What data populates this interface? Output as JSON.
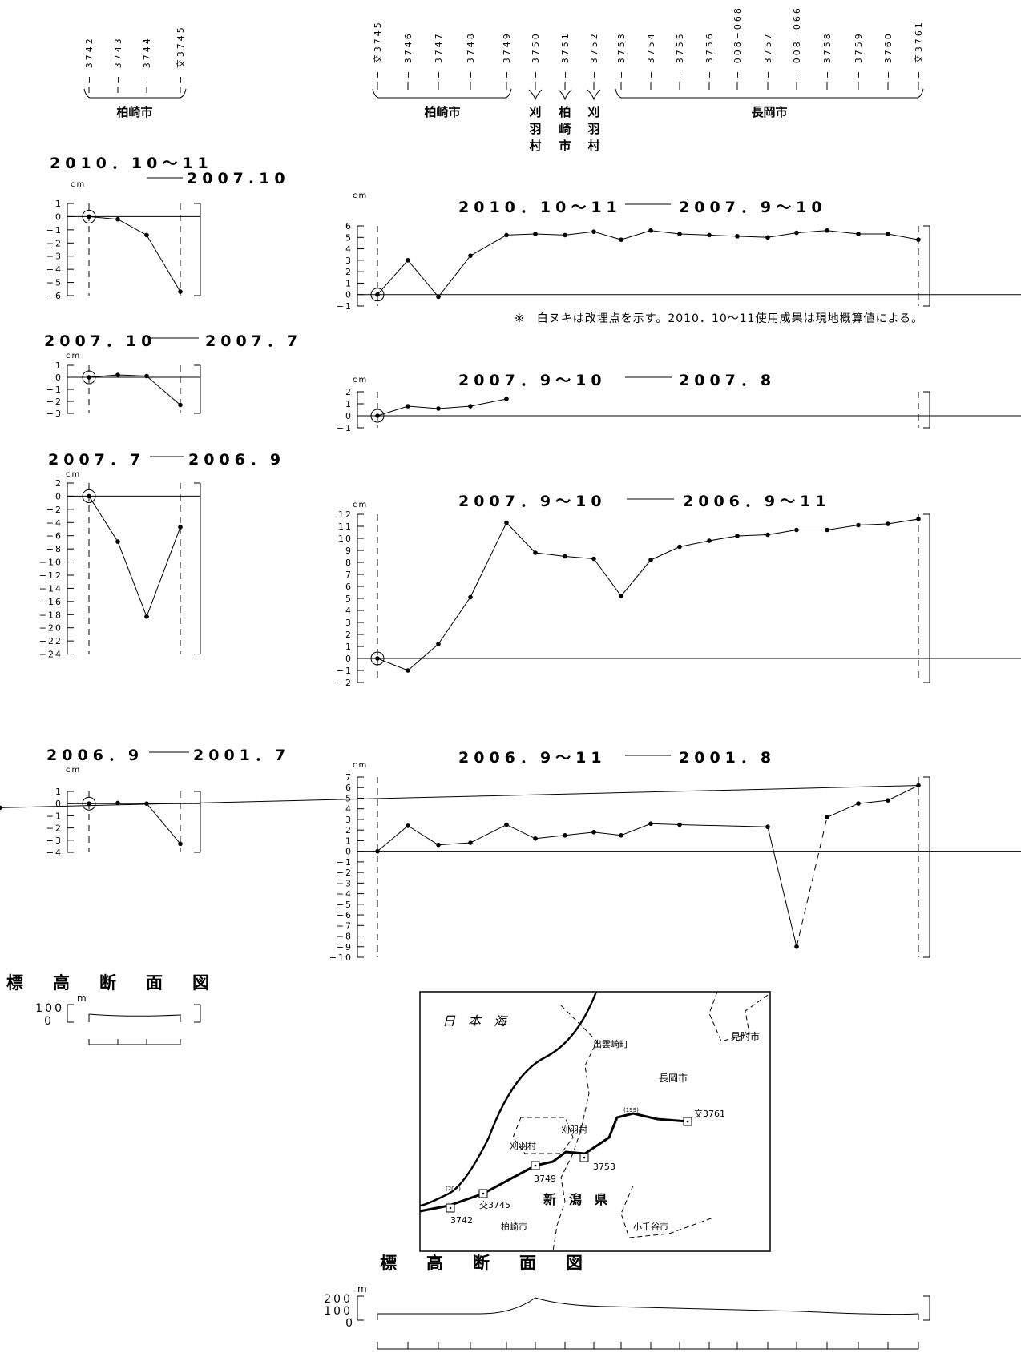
{
  "header": {
    "left": {
      "stations": [
        "3742",
        "3743",
        "3744",
        "交3745"
      ],
      "group": "柏崎市"
    },
    "right": {
      "stations": [
        "交3745",
        "3746",
        "3747",
        "3748",
        "3749",
        "3750",
        "3751",
        "3752",
        "3753",
        "3754",
        "3755",
        "3756",
        "008−068",
        "3757",
        "008−066",
        "3758",
        "3759",
        "3760",
        "交3761"
      ],
      "groups": [
        {
          "label": "柏崎市"
        },
        {
          "label": "刈羽村"
        },
        {
          "label": "柏崎市"
        },
        {
          "label": "刈羽村"
        },
        {
          "label": "長岡市"
        }
      ]
    }
  },
  "unit_cm": "cm",
  "note": "※　白ヌキは改埋点を示す。2010．10～11使用成果は現地概算値による。",
  "chart_data": [
    {
      "id": "L1",
      "type": "line",
      "title_a": "2010．10～11",
      "title_b": "2007.10",
      "ylabel": "cm",
      "ylim": [
        -6,
        1
      ],
      "ticks": [
        1,
        0,
        -1,
        -2,
        -3,
        -4,
        -5,
        -6
      ],
      "values": [
        0,
        -0.2,
        -1.4,
        -5.7
      ],
      "reference_index": 0
    },
    {
      "id": "L2",
      "type": "line",
      "title_a": "2007．10",
      "title_b": "2007．7",
      "ylabel": "cm",
      "ylim": [
        -3,
        1
      ],
      "ticks": [
        1,
        0,
        -1,
        -2,
        -3
      ],
      "values": [
        0,
        0.2,
        0.1,
        -2.3
      ],
      "reference_index": 0
    },
    {
      "id": "L3",
      "type": "line",
      "title_a": "2007．7",
      "title_b": "2006．9",
      "ylabel": "cm",
      "ylim": [
        -26,
        2
      ],
      "ticks": [
        2,
        0,
        -2,
        -4,
        -6,
        -8,
        -10,
        -12,
        -14,
        -16,
        -18,
        -20,
        -22,
        -24
      ],
      "values": [
        0,
        -6.9,
        -18.3,
        -4.7
      ],
      "reference_index": 0
    },
    {
      "id": "L4",
      "type": "line",
      "title_a": "2006．9",
      "title_b": "2001．7",
      "ylabel": "cm",
      "ylim": [
        -4,
        1
      ],
      "ticks": [
        1,
        0,
        -1,
        -2,
        -3,
        -4
      ],
      "values": [
        0,
        0.05,
        0,
        -3.3
      ],
      "reference_index": 0
    },
    {
      "id": "R1",
      "type": "line",
      "title_a": "2010．10～11",
      "title_b": "2007．9～10",
      "ylabel": "cm",
      "ylim": [
        -1,
        6
      ],
      "ticks": [
        6,
        5,
        4,
        3,
        2,
        1,
        0,
        -1
      ],
      "values": [
        0,
        3.0,
        -0.2,
        3.4,
        5.2,
        5.3,
        5.2,
        5.5,
        4.8,
        5.6,
        5.3,
        5.2,
        5.1,
        5.0,
        5.4,
        5.6,
        5.3,
        5.3,
        4.8
      ],
      "reference_index": 0
    },
    {
      "id": "R2",
      "type": "line",
      "title_a": "2007．9～10",
      "title_b": "2007．8",
      "ylabel": "cm",
      "ylim": [
        -1,
        2
      ],
      "ticks": [
        2,
        1,
        0,
        -1
      ],
      "values": [
        0,
        0.8,
        0.6,
        0.8,
        1.4
      ],
      "reference_index": 0
    },
    {
      "id": "R3",
      "type": "line",
      "title_a": "2007．9～10",
      "title_b": "2006．9～11",
      "ylabel": "cm",
      "ylim": [
        -2,
        12
      ],
      "ticks": [
        12,
        11,
        10,
        9,
        8,
        7,
        6,
        5,
        4,
        3,
        2,
        1,
        0,
        -1,
        -2
      ],
      "values": [
        0,
        -1.0,
        1.2,
        5.1,
        11.3,
        8.8,
        8.5,
        8.3,
        5.2,
        8.2,
        9.3,
        9.8,
        10.2,
        10.3,
        10.7,
        10.7,
        11.1,
        11.2,
        11.6
      ],
      "reference_index": 0
    },
    {
      "id": "R4",
      "type": "line",
      "title_a": "2006．9～11",
      "title_b": "2001．8",
      "ylabel": "cm",
      "ylim": [
        -10,
        7
      ],
      "ticks": [
        7,
        6,
        5,
        4,
        3,
        2,
        1,
        0,
        -1,
        -2,
        -3,
        -4,
        -5,
        -6,
        -7,
        -8,
        -9,
        -10
      ],
      "values": [
        0,
        2.4,
        0.6,
        0.8,
        2.5,
        1.2,
        1.5,
        1.8,
        1.5,
        2.6,
        2.5,
        2.3,
        -9.0,
        3.2,
        4.5,
        4.8,
        6.2,
        4.1
      ],
      "dashed_segment": 12
    }
  ],
  "profile_left": {
    "title": "標　高　断　面　図",
    "unit": "m",
    "ticks": [
      "100",
      "0"
    ]
  },
  "profile_right": {
    "title": "標　高　断　面　図",
    "unit": "m",
    "ticks": [
      "200",
      "100",
      "0"
    ]
  },
  "map": {
    "sea": "日　本　海",
    "labels": [
      "出雲崎町",
      "長岡市",
      "見附市",
      "刈羽村",
      "刈羽村",
      "新　潟　県",
      "柏崎市",
      "小千谷市"
    ],
    "stations": [
      "3742",
      "交3745",
      "3749",
      "3753",
      "交3761"
    ],
    "routes": [
      "(206)",
      "(199)"
    ]
  }
}
